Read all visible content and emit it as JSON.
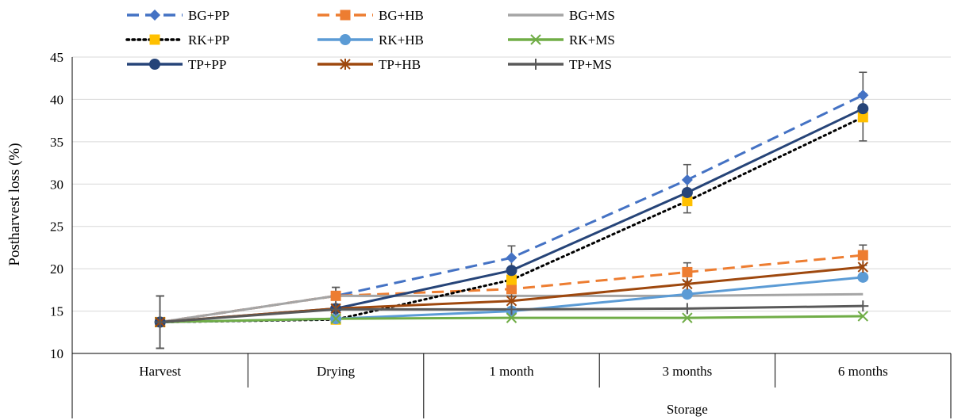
{
  "chart_data": {
    "type": "line",
    "ylabel": "Postharvest loss (%)",
    "ylim": [
      10,
      45
    ],
    "yticks": [
      10,
      15,
      20,
      25,
      30,
      35,
      40,
      45
    ],
    "grid": true,
    "legend_position": "top",
    "categories": [
      "Harvest",
      "Drying",
      "1 month",
      "3 months",
      "6 months"
    ],
    "group_label": "Storage",
    "series": [
      {
        "name": "BG+PP",
        "color": "#4472C4",
        "dash": "dashed",
        "marker": "diamond",
        "values": [
          13.7,
          16.8,
          21.3,
          30.5,
          40.5
        ],
        "errors": [
          3.1,
          1.0,
          1.4,
          1.8,
          2.7
        ]
      },
      {
        "name": "BG+HB",
        "color": "#ED7D31",
        "dash": "dashed",
        "marker": "square",
        "values": [
          13.7,
          16.8,
          17.6,
          19.6,
          21.6
        ],
        "errors": [
          3.1,
          1.0,
          0.9,
          1.1,
          1.2
        ]
      },
      {
        "name": "BG+MS",
        "color": "#A5A5A5",
        "dash": "solid",
        "marker": "none",
        "values": [
          13.7,
          16.8,
          16.8,
          16.8,
          17.0
        ],
        "errors": [
          3.1,
          1.0,
          0,
          0,
          0
        ]
      },
      {
        "name": "RK+PP",
        "color": "#000000",
        "markerColor": "#FFC000",
        "dash": "dotted",
        "marker": "square",
        "values": [
          13.7,
          14.0,
          18.7,
          28.0,
          37.9
        ],
        "errors": [
          3.1,
          0,
          0,
          1.4,
          2.8
        ]
      },
      {
        "name": "RK+HB",
        "color": "#5B9BD5",
        "dash": "solid",
        "marker": "circle",
        "values": [
          13.7,
          14.1,
          15.0,
          17.0,
          19.0
        ],
        "errors": [
          3.1,
          0,
          0,
          0,
          0
        ]
      },
      {
        "name": "RK+MS",
        "color": "#70AD47",
        "dash": "solid",
        "marker": "x",
        "values": [
          13.7,
          14.1,
          14.2,
          14.2,
          14.4
        ],
        "errors": [
          3.1,
          0,
          0,
          0,
          0
        ]
      },
      {
        "name": "TP+PP",
        "color": "#264478",
        "dash": "solid",
        "marker": "circle",
        "values": [
          13.7,
          15.3,
          19.8,
          29.0,
          38.9
        ],
        "errors": [
          3.1,
          0,
          0,
          0,
          0
        ]
      },
      {
        "name": "TP+HB",
        "color": "#9E480E",
        "dash": "solid",
        "marker": "star",
        "values": [
          13.7,
          15.3,
          16.2,
          18.2,
          20.2
        ],
        "errors": [
          3.1,
          0,
          0,
          0,
          0
        ]
      },
      {
        "name": "TP+MS",
        "color": "#595959",
        "dash": "solid",
        "marker": "plus",
        "values": [
          13.7,
          15.2,
          15.2,
          15.3,
          15.6
        ],
        "errors": [
          3.1,
          0,
          0,
          0,
          0
        ]
      }
    ]
  }
}
